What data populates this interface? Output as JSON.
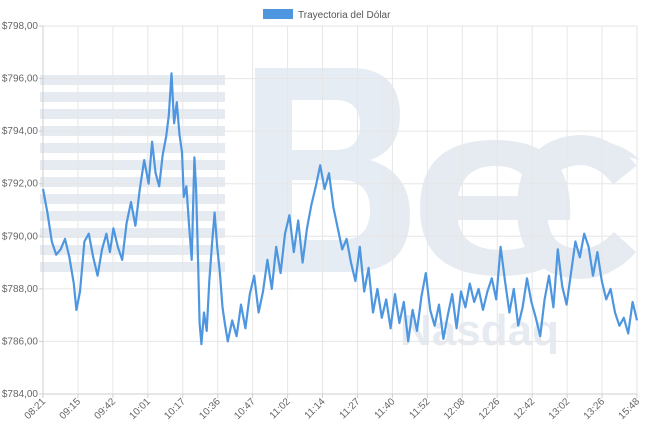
{
  "chart_data": {
    "type": "line",
    "title": "",
    "xlabel": "",
    "ylabel": "",
    "legend": {
      "position": "top-center"
    },
    "grid": true,
    "ylim": [
      784,
      798
    ],
    "y_ticks": [
      "$784,00",
      "$786,00",
      "$788,00",
      "$790,00",
      "$792,00",
      "$794,00",
      "$796,00",
      "$798,00"
    ],
    "x_ticks": [
      "08:21",
      "09:15",
      "09:42",
      "10:01",
      "10:17",
      "10:36",
      "10:47",
      "11:02",
      "11:14",
      "11:27",
      "11:40",
      "11:52",
      "12:08",
      "12:26",
      "12:42",
      "13:02",
      "13:26",
      "15:48"
    ],
    "series": [
      {
        "name": "Trayectoria del Dólar",
        "color": "#4e97e0",
        "values": [
          [
            0.0,
            791.8
          ],
          [
            0.5,
            790.9
          ],
          [
            1.0,
            789.8
          ],
          [
            1.5,
            789.3
          ],
          [
            2.0,
            789.5
          ],
          [
            2.5,
            789.9
          ],
          [
            3.0,
            789.2
          ],
          [
            3.5,
            788.2
          ],
          [
            3.8,
            787.2
          ],
          [
            4.2,
            787.9
          ],
          [
            4.7,
            789.8
          ],
          [
            5.2,
            790.1
          ],
          [
            5.7,
            789.2
          ],
          [
            6.2,
            788.5
          ],
          [
            6.7,
            789.5
          ],
          [
            7.2,
            790.1
          ],
          [
            7.6,
            789.4
          ],
          [
            8.0,
            790.3
          ],
          [
            8.5,
            789.6
          ],
          [
            9.0,
            789.1
          ],
          [
            9.5,
            790.5
          ],
          [
            10.0,
            791.3
          ],
          [
            10.5,
            790.4
          ],
          [
            11.0,
            791.8
          ],
          [
            11.5,
            792.9
          ],
          [
            12.0,
            792.0
          ],
          [
            12.4,
            793.6
          ],
          [
            12.8,
            792.4
          ],
          [
            13.2,
            791.9
          ],
          [
            13.6,
            793.1
          ],
          [
            14.0,
            793.8
          ],
          [
            14.3,
            794.6
          ],
          [
            14.6,
            796.2
          ],
          [
            14.9,
            794.3
          ],
          [
            15.2,
            795.1
          ],
          [
            15.5,
            793.9
          ],
          [
            15.8,
            793.2
          ],
          [
            16.0,
            791.5
          ],
          [
            16.3,
            791.9
          ],
          [
            16.6,
            790.4
          ],
          [
            16.9,
            789.1
          ],
          [
            17.2,
            793.0
          ],
          [
            17.4,
            791.8
          ],
          [
            17.6,
            789.3
          ],
          [
            17.8,
            786.7
          ],
          [
            18.0,
            785.9
          ],
          [
            18.3,
            787.1
          ],
          [
            18.6,
            786.4
          ],
          [
            18.9,
            788.3
          ],
          [
            19.2,
            789.7
          ],
          [
            19.5,
            790.9
          ],
          [
            19.8,
            789.6
          ],
          [
            20.1,
            788.6
          ],
          [
            20.4,
            787.3
          ],
          [
            20.7,
            786.6
          ],
          [
            21.0,
            786.0
          ],
          [
            21.5,
            786.8
          ],
          [
            22.0,
            786.2
          ],
          [
            22.5,
            787.4
          ],
          [
            23.0,
            786.5
          ],
          [
            23.5,
            787.8
          ],
          [
            24.0,
            788.5
          ],
          [
            24.5,
            787.1
          ],
          [
            25.0,
            787.9
          ],
          [
            25.5,
            789.1
          ],
          [
            26.0,
            788.0
          ],
          [
            26.5,
            789.6
          ],
          [
            27.0,
            788.6
          ],
          [
            27.5,
            790.1
          ],
          [
            28.0,
            790.8
          ],
          [
            28.5,
            789.4
          ],
          [
            29.0,
            790.6
          ],
          [
            29.5,
            789.0
          ],
          [
            30.0,
            790.3
          ],
          [
            30.5,
            791.2
          ],
          [
            31.0,
            791.9
          ],
          [
            31.5,
            792.7
          ],
          [
            32.0,
            791.8
          ],
          [
            32.5,
            792.4
          ],
          [
            33.0,
            791.1
          ],
          [
            33.5,
            790.3
          ],
          [
            34.0,
            789.5
          ],
          [
            34.5,
            789.9
          ],
          [
            35.0,
            789.0
          ],
          [
            35.5,
            788.3
          ],
          [
            36.0,
            789.6
          ],
          [
            36.5,
            787.9
          ],
          [
            37.0,
            788.8
          ],
          [
            37.5,
            787.1
          ],
          [
            38.0,
            788.0
          ],
          [
            38.5,
            786.9
          ],
          [
            39.0,
            787.6
          ],
          [
            39.5,
            786.5
          ],
          [
            40.0,
            787.8
          ],
          [
            40.5,
            786.7
          ],
          [
            41.0,
            787.5
          ],
          [
            41.5,
            786.0
          ],
          [
            42.0,
            787.2
          ],
          [
            42.5,
            786.4
          ],
          [
            43.0,
            787.7
          ],
          [
            43.5,
            788.6
          ],
          [
            44.0,
            787.2
          ],
          [
            44.5,
            786.6
          ],
          [
            45.0,
            787.4
          ],
          [
            45.5,
            786.1
          ],
          [
            46.0,
            787.0
          ],
          [
            46.5,
            787.8
          ],
          [
            47.0,
            786.5
          ],
          [
            47.5,
            787.9
          ],
          [
            48.0,
            787.3
          ],
          [
            48.5,
            788.2
          ],
          [
            49.0,
            787.5
          ],
          [
            49.5,
            788.0
          ],
          [
            50.0,
            787.2
          ],
          [
            50.5,
            787.9
          ],
          [
            51.0,
            788.4
          ],
          [
            51.5,
            787.6
          ],
          [
            52.0,
            789.6
          ],
          [
            52.5,
            788.3
          ],
          [
            53.0,
            787.1
          ],
          [
            53.5,
            788.0
          ],
          [
            54.0,
            786.6
          ],
          [
            54.5,
            787.3
          ],
          [
            55.0,
            788.4
          ],
          [
            55.5,
            787.5
          ],
          [
            56.0,
            786.9
          ],
          [
            56.5,
            786.2
          ],
          [
            57.0,
            787.6
          ],
          [
            57.5,
            788.5
          ],
          [
            58.0,
            787.3
          ],
          [
            58.5,
            789.5
          ],
          [
            59.0,
            788.1
          ],
          [
            59.5,
            787.4
          ],
          [
            60.0,
            788.6
          ],
          [
            60.5,
            789.8
          ],
          [
            61.0,
            789.2
          ],
          [
            61.5,
            790.1
          ],
          [
            62.0,
            789.6
          ],
          [
            62.5,
            788.5
          ],
          [
            63.0,
            789.4
          ],
          [
            63.5,
            788.3
          ],
          [
            64.0,
            787.6
          ],
          [
            64.5,
            788.0
          ],
          [
            65.0,
            787.1
          ],
          [
            65.5,
            786.6
          ],
          [
            66.0,
            786.9
          ],
          [
            66.5,
            786.3
          ],
          [
            67.0,
            787.5
          ],
          [
            67.5,
            786.8
          ]
        ]
      }
    ]
  }
}
